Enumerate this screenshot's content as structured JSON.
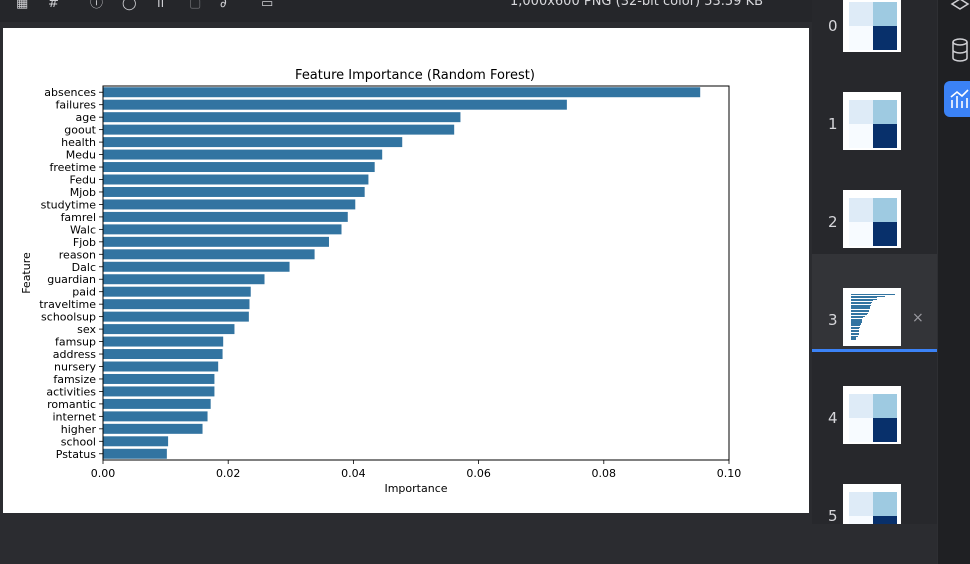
{
  "topbar": {
    "file_info": "1,000x600 PNG (32-bit color) 53.59 KB",
    "icons": [
      "grid-icon",
      "crop-icon",
      "info-icon",
      "compare-icon",
      "histogram-icon",
      "image-icon",
      "brush-icon",
      "window-icon"
    ]
  },
  "chart_data": {
    "type": "bar",
    "orientation": "horizontal",
    "title": "Feature Importance (Random Forest)",
    "xlabel": "Importance",
    "ylabel": "Feature",
    "xlim": [
      0,
      0.1
    ],
    "xticks": [
      "0.00",
      "0.02",
      "0.04",
      "0.06",
      "0.08",
      "0.10"
    ],
    "bar_color": "#3274a1",
    "categories": [
      "absences",
      "failures",
      "age",
      "goout",
      "health",
      "Medu",
      "freetime",
      "Fedu",
      "Mjob",
      "studytime",
      "famrel",
      "Walc",
      "Fjob",
      "reason",
      "Dalc",
      "guardian",
      "paid",
      "traveltime",
      "schoolsup",
      "sex",
      "famsup",
      "address",
      "nursery",
      "famsize",
      "activities",
      "romantic",
      "internet",
      "higher",
      "school",
      "Pstatus"
    ],
    "values": [
      0.0954,
      0.0741,
      0.0571,
      0.0561,
      0.0478,
      0.0446,
      0.0434,
      0.0424,
      0.0418,
      0.0403,
      0.0391,
      0.0381,
      0.0361,
      0.0338,
      0.0298,
      0.0258,
      0.0236,
      0.0234,
      0.0233,
      0.021,
      0.0192,
      0.0191,
      0.0184,
      0.0178,
      0.0178,
      0.0172,
      0.0167,
      0.0159,
      0.0104,
      0.0102
    ]
  },
  "thumbnails": [
    {
      "index": "0",
      "kind": "heatmap",
      "selected": false
    },
    {
      "index": "1",
      "kind": "heatmap",
      "selected": false
    },
    {
      "index": "2",
      "kind": "heatmap",
      "selected": false
    },
    {
      "index": "3",
      "kind": "bar",
      "selected": true,
      "close": "×"
    },
    {
      "index": "4",
      "kind": "heatmap",
      "selected": false
    },
    {
      "index": "5",
      "kind": "heatmap",
      "selected": false
    }
  ],
  "rightbar": {
    "buttons": [
      "layers-icon",
      "database-icon",
      "chart-icon"
    ],
    "active": 2
  },
  "colors": {
    "accent": "#3b82f6",
    "heat_dark": "#08306b",
    "heat_mid": "#9ecae1",
    "heat_light": "#deebf7"
  }
}
